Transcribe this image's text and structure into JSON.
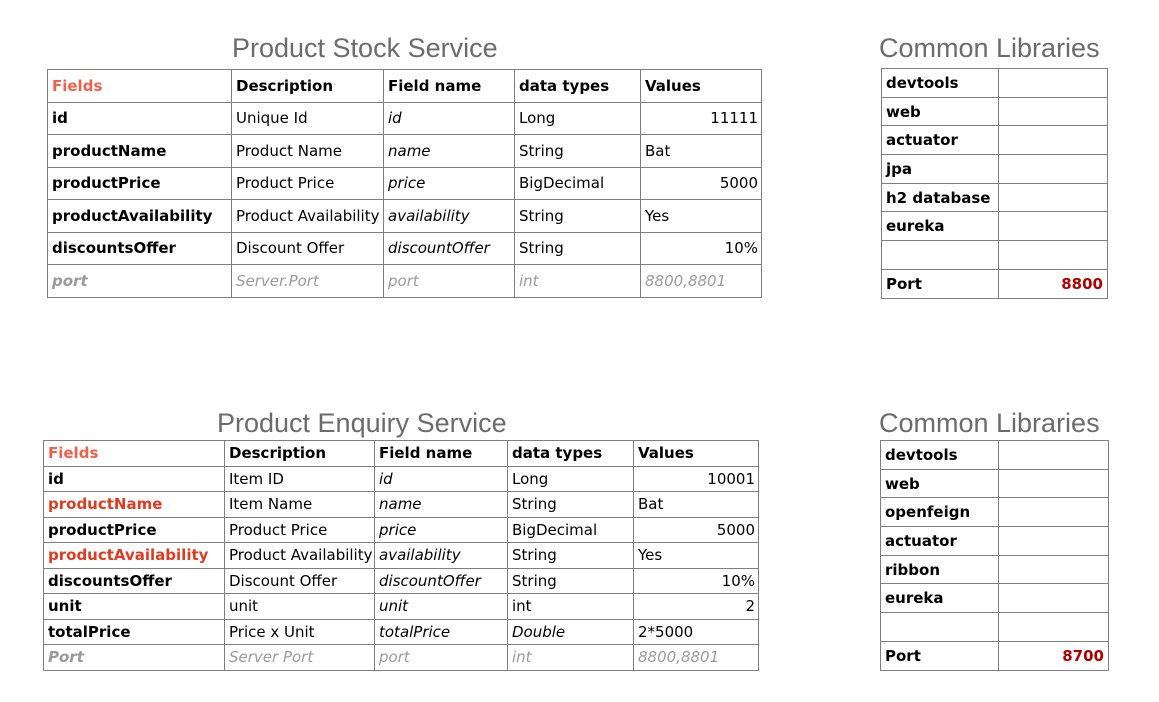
{
  "stock": {
    "title": "Product Stock Service",
    "headers": [
      "Fields",
      "Description",
      "Field name",
      "data types",
      "Values"
    ],
    "rows": [
      [
        "id",
        "Unique Id",
        "id",
        "Long",
        "11111"
      ],
      [
        "productName",
        "Product Name",
        "name",
        "String",
        "Bat"
      ],
      [
        "productPrice",
        "Product Price",
        "price",
        "BigDecimal",
        "5000"
      ],
      [
        "productAvailability",
        "Product Availability",
        "availability",
        "String",
        "Yes"
      ],
      [
        "discountsOffer",
        "Discount Offer",
        "discountOffer",
        "String",
        "10%"
      ],
      [
        "port",
        "Server.Port",
        "port",
        "int",
        "8800,8801"
      ]
    ]
  },
  "stock_libs": {
    "title": "Common Libraries",
    "items": [
      "devtools",
      "web",
      "actuator",
      "jpa",
      "h2 database",
      "eureka",
      ""
    ],
    "port_label": "Port",
    "port_value": "8800"
  },
  "enquiry": {
    "title": "Product Enquiry Service",
    "headers": [
      "Fields",
      "Description",
      "Field name",
      "data types",
      "Values"
    ],
    "rows": [
      [
        "id",
        "Item ID",
        "id",
        "Long",
        "10001"
      ],
      [
        "productName",
        "Item Name",
        "name",
        "String",
        "Bat"
      ],
      [
        "productPrice",
        "Product Price",
        "price",
        "BigDecimal",
        "5000"
      ],
      [
        "productAvailability",
        "Product Availability",
        "availability",
        "String",
        "Yes"
      ],
      [
        "discountsOffer",
        "Discount Offer",
        "discountOffer",
        "String",
        "10%"
      ],
      [
        "unit",
        "unit",
        "unit",
        "int",
        "2"
      ],
      [
        "totalPrice",
        "Price x Unit",
        "totalPrice",
        "Double",
        "2*5000"
      ],
      [
        "Port",
        "Server Port",
        "port",
        "int",
        "8800,8801"
      ]
    ]
  },
  "enquiry_libs": {
    "title": "Common Libraries",
    "items": [
      "devtools",
      "web",
      "openfeign",
      "actuator",
      "ribbon",
      "eureka",
      ""
    ],
    "port_label": "Port",
    "port_value": "8700"
  },
  "colors": {
    "header_fields": "#f0604a",
    "highlight": "#e03a20",
    "port_value": "#b00000",
    "title": "#6b6b6b",
    "border": "#7f7f7f"
  }
}
